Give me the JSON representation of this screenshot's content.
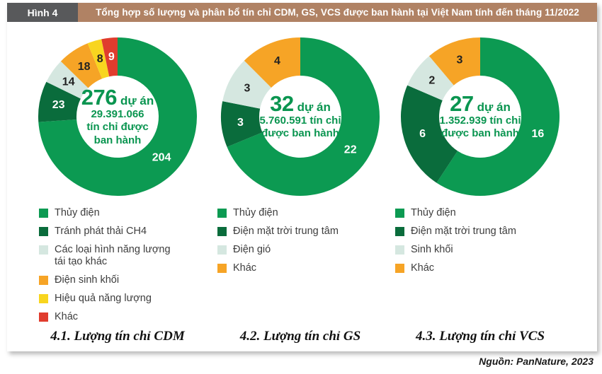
{
  "figure": {
    "tag": "Hình 4",
    "title": "Tổng hợp số lượng và phân bổ tín chỉ CDM, GS, VCS được ban hành tại Việt Nam tính đến tháng 11/2022",
    "source": "Nguồn: PanNature, 2023"
  },
  "colors": {
    "header_tag_bg": "#58595b",
    "header_title_bg": "#b08264",
    "center_text": "#0a9550",
    "legend_text": "#3d3d3d"
  },
  "chart_data": [
    {
      "type": "pie",
      "variant": "donut",
      "caption": "4.1. Lượng tín chỉ CDM",
      "center_label": {
        "value": "276",
        "suffix": "dự án",
        "lines": [
          "29.391.066",
          "tín chỉ được",
          "ban hành"
        ]
      },
      "total_projects": 276,
      "total_credits_issued": "29.391.066",
      "legend_position": "bottom-left",
      "segments": [
        {
          "label": "Thủy điện",
          "value": 204,
          "color": "#0c9a52",
          "label_color": "#ffffff"
        },
        {
          "label": "Tránh phát thải CH4",
          "value": 23,
          "color": "#0a6c3c",
          "label_color": "#ffffff"
        },
        {
          "label": "Các loại hình năng lượng tái tạo khác",
          "value": 14,
          "color": "#d5e7e0",
          "label_color": "#222222"
        },
        {
          "label": "Điện sinh khối",
          "value": 18,
          "color": "#f6a426",
          "label_color": "#222222"
        },
        {
          "label": "Hiệu quả năng lượng",
          "value": 8,
          "color": "#f8d51f",
          "label_color": "#222222"
        },
        {
          "label": "Khác",
          "value": 9,
          "color": "#e03c2e",
          "label_color": "#ffffff"
        }
      ]
    },
    {
      "type": "pie",
      "variant": "donut",
      "caption": "4.2. Lượng tín chỉ GS",
      "center_label": {
        "value": "32",
        "suffix": "dự án",
        "lines": [
          "5.760.591 tín chỉ",
          "được ban hành"
        ]
      },
      "total_projects": 32,
      "total_credits_issued": "5.760.591",
      "legend_position": "bottom-left",
      "segments": [
        {
          "label": "Thủy điện",
          "value": 22,
          "color": "#0c9a52",
          "label_color": "#ffffff"
        },
        {
          "label": "Điện mặt trời trung tâm",
          "value": 3,
          "color": "#0a6c3c",
          "label_color": "#ffffff"
        },
        {
          "label": "Điện gió",
          "value": 3,
          "color": "#d5e7e0",
          "label_color": "#222222"
        },
        {
          "label": "Khác",
          "value": 4,
          "color": "#f6a426",
          "label_color": "#222222"
        }
      ]
    },
    {
      "type": "pie",
      "variant": "donut",
      "caption": "4.3. Lượng tín chỉ VCS",
      "center_label": {
        "value": "27",
        "suffix": "dự án",
        "lines": [
          "1.352.939 tín chỉ",
          "được ban hành"
        ]
      },
      "total_projects": 27,
      "total_credits_issued": "1.352.939",
      "legend_position": "bottom-left",
      "segments": [
        {
          "label": "Thủy điện",
          "value": 16,
          "color": "#0c9a52",
          "label_color": "#ffffff"
        },
        {
          "label": "Điện mặt trời trung tâm",
          "value": 6,
          "color": "#0a6c3c",
          "label_color": "#ffffff"
        },
        {
          "label": "Sinh khối",
          "value": 2,
          "color": "#d5e7e0",
          "label_color": "#222222"
        },
        {
          "label": "Khác",
          "value": 3,
          "color": "#f6a426",
          "label_color": "#222222"
        }
      ]
    }
  ]
}
